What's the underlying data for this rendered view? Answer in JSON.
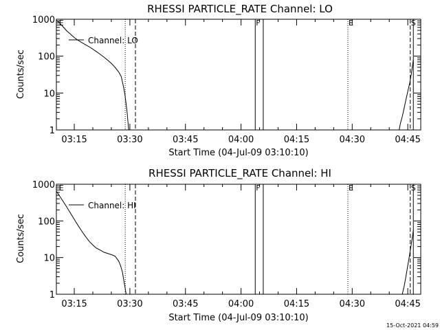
{
  "stamp": "15-Oct-2021 04:59",
  "chart_data": [
    {
      "type": "line",
      "title": "RHESSI PARTICLE_RATE Channel: LO",
      "xlabel": "Start Time (04-Jul-09 03:10:10)",
      "ylabel": "Counts/sec",
      "legend": "Channel: LO",
      "legend_position": "top-left",
      "yscale": "log",
      "xlim": [
        "03:10:10",
        "04:48:30"
      ],
      "ylim": [
        1,
        1000
      ],
      "xticks": [
        "03:15",
        "03:30",
        "03:45",
        "04:00",
        "04:15",
        "04:30",
        "04:45"
      ],
      "yticks": [
        "1",
        "10",
        "100",
        "1000"
      ],
      "markers": [
        {
          "label": "E",
          "time": "03:10:40",
          "style": "none"
        },
        {
          "time": "03:28:45",
          "style": "dotted"
        },
        {
          "time": "03:31:30",
          "style": "dashed"
        },
        {
          "label": "F",
          "time": "04:03:50",
          "style": "solid"
        },
        {
          "time": "04:06:00",
          "style": "solid"
        },
        {
          "label": "E",
          "time": "04:28:50",
          "style": "dotted"
        },
        {
          "label": "S",
          "time": "04:45:40",
          "style": "dashed"
        },
        {
          "time": "04:46:30",
          "style": "solid"
        }
      ],
      "series": [
        {
          "x": [
            "03:10:10",
            "03:11:00",
            "03:12:00",
            "03:13:00",
            "03:14:00",
            "03:15:00",
            "03:16:00",
            "03:17:00",
            "03:18:00",
            "03:19:00",
            "03:20:00",
            "03:21:00",
            "03:22:00",
            "03:23:00",
            "03:24:00",
            "03:25:00",
            "03:26:00",
            "03:27:00",
            "03:27:40",
            "03:28:00",
            "03:28:20",
            "03:28:40",
            "03:29:00",
            "03:29:15",
            "03:29:30",
            "03:29:40"
          ],
          "y": [
            950,
            800,
            620,
            480,
            390,
            320,
            270,
            235,
            205,
            180,
            155,
            132,
            112,
            94,
            78,
            64,
            50,
            37,
            28,
            20,
            14,
            9,
            5,
            3,
            1.6,
            1.0
          ]
        },
        {
          "x": [
            "04:42:40",
            "04:43:00",
            "04:43:30",
            "04:44:00",
            "04:44:30",
            "04:45:00",
            "04:45:30",
            "04:46:00",
            "04:46:30"
          ],
          "y": [
            1.0,
            1.5,
            2.3,
            3.8,
            6.5,
            11,
            18,
            35,
            80
          ]
        }
      ]
    },
    {
      "type": "line",
      "title": "RHESSI PARTICLE_RATE Channel: HI",
      "xlabel": "Start Time (04-Jul-09 03:10:10)",
      "ylabel": "Counts/sec",
      "legend": "Channel: HI",
      "legend_position": "top-left",
      "yscale": "log",
      "xlim": [
        "03:10:10",
        "04:48:30"
      ],
      "ylim": [
        1,
        1000
      ],
      "xticks": [
        "03:15",
        "03:30",
        "03:45",
        "04:00",
        "04:15",
        "04:30",
        "04:45"
      ],
      "yticks": [
        "1",
        "10",
        "100",
        "1000"
      ],
      "markers": [
        {
          "label": "E",
          "time": "03:10:40",
          "style": "none"
        },
        {
          "time": "03:28:45",
          "style": "dotted"
        },
        {
          "time": "03:31:30",
          "style": "dashed"
        },
        {
          "label": "F",
          "time": "04:03:50",
          "style": "solid"
        },
        {
          "time": "04:06:00",
          "style": "solid"
        },
        {
          "label": "E",
          "time": "04:28:50",
          "style": "dotted"
        },
        {
          "label": "S",
          "time": "04:45:40",
          "style": "dashed"
        },
        {
          "time": "04:46:30",
          "style": "solid"
        }
      ],
      "series": [
        {
          "x": [
            "03:10:10",
            "03:11:00",
            "03:12:00",
            "03:13:00",
            "03:14:00",
            "03:15:00",
            "03:16:00",
            "03:17:00",
            "03:18:00",
            "03:19:00",
            "03:20:00",
            "03:21:00",
            "03:22:00",
            "03:23:00",
            "03:24:00",
            "03:25:00",
            "03:26:00",
            "03:27:00",
            "03:27:30",
            "03:28:00",
            "03:28:20",
            "03:28:40",
            "03:29:00"
          ],
          "y": [
            650,
            480,
            340,
            235,
            160,
            110,
            76,
            53,
            38,
            28,
            22,
            18,
            16,
            14,
            13,
            12,
            11,
            8,
            6,
            4,
            2.5,
            1.6,
            1.0
          ]
        },
        {
          "x": [
            "04:43:30",
            "04:44:00",
            "04:44:30",
            "04:45:00",
            "04:45:30",
            "04:46:00",
            "04:46:30"
          ],
          "y": [
            1.0,
            1.6,
            3,
            6,
            12,
            25,
            55
          ]
        }
      ]
    }
  ]
}
